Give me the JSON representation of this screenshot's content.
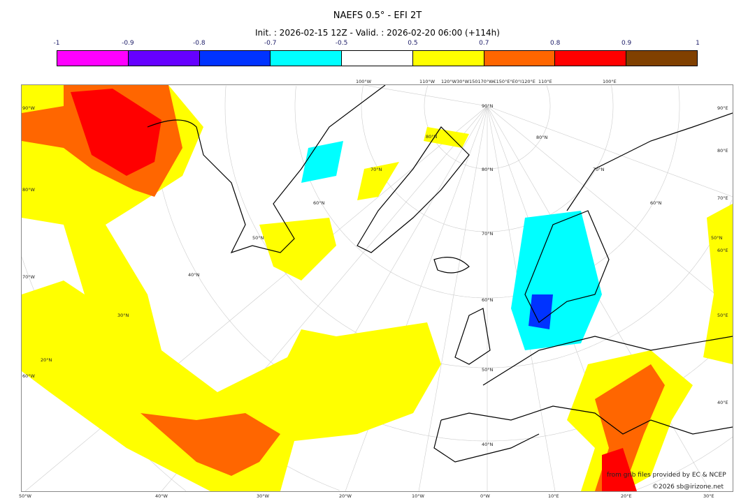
{
  "title": "NAEFS 0.5° - EFI 2T",
  "subtitle": "Init. : 2026-02-15 12Z - Valid. : 2026-02-20 06:00 (+114h)",
  "colorbar": {
    "ticks": [
      "-1",
      "-0.9",
      "-0.8",
      "-0.7",
      "-0.5",
      "0.5",
      "0.7",
      "0.8",
      "0.9",
      "1"
    ],
    "colors": [
      "#ff00ff",
      "#6600ff",
      "#0033ff",
      "#00ffff",
      "#ffffff",
      "#ffff00",
      "#ff6600",
      "#ff0000",
      "#804000"
    ]
  },
  "map": {
    "top_labels": [
      "100°W",
      "110°W",
      "120°W30°W150170°W€150°E°E0°I120°E",
      "110°E",
      "100°E"
    ],
    "left_labels": [
      "90°W",
      "80°W",
      "70°W",
      "60°W"
    ],
    "right_labels": [
      "90°E",
      "80°E",
      "70°E",
      "60°E",
      "50°E",
      "40°E"
    ],
    "bottom_labels": [
      "50°W",
      "40°W",
      "30°W",
      "20°W",
      "10°W",
      "0°W",
      "10°E",
      "20°E",
      "30°E"
    ],
    "lat_labels": [
      "90°N",
      "80°N",
      "80°N",
      "80°N",
      "70°N",
      "70°N",
      "70°N",
      "60°N",
      "60°N",
      "60°N",
      "50°N",
      "50°N",
      "50°N",
      "40°N",
      "40°N",
      "30°N",
      "20°N"
    ]
  },
  "credits": {
    "source": "from grib files provided by EC & NCEP",
    "copyright": "©2026 sb@irizone.net"
  }
}
